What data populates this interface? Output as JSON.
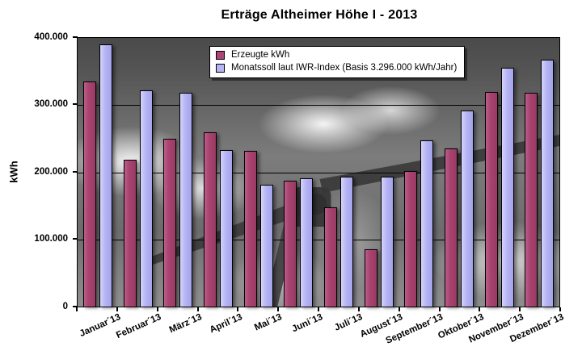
{
  "title": "Erträge Altheimer Höhe I - 2013",
  "y_axis": {
    "label": "kWh",
    "ticks": [
      "400.000",
      "300.000",
      "200.000",
      "100.000",
      "0"
    ]
  },
  "legend": {
    "items": [
      {
        "label": "Erzeugte kWh",
        "color": "#aa4673"
      },
      {
        "label": "Monatssoll laut IWR-Index (Basis 3.296.000 kWh/Jahr)",
        "color": "#b6b4f3"
      }
    ]
  },
  "chart_data": {
    "type": "bar",
    "title": "Erträge Altheimer Höhe I - 2013",
    "xlabel": "",
    "ylabel": "kWh",
    "ylim": [
      0,
      400000
    ],
    "grid": true,
    "gridline_step": 100000,
    "legend_position": "top-center-inside",
    "background": "grayscale wind turbine photo",
    "categories": [
      "Januar´13",
      "Februar´13",
      "März´13",
      "April´13",
      "Mai´13",
      "Juni´13",
      "Juli´13",
      "August´13",
      "September´13",
      "Oktober´13",
      "November´13",
      "Dezember´13"
    ],
    "series": [
      {
        "name": "Erzeugte kWh",
        "color": "#aa4673",
        "values": [
          335000,
          219000,
          250000,
          259000,
          232000,
          187000,
          148000,
          85000,
          202000,
          236000,
          319000,
          318000
        ]
      },
      {
        "name": "Monatssoll laut IWR-Index (Basis 3.296.000 kWh/Jahr)",
        "color": "#b6b4f3",
        "values": [
          391000,
          322000,
          318000,
          233000,
          182000,
          191000,
          194000,
          194000,
          248000,
          292000,
          356000,
          368000
        ]
      }
    ]
  }
}
